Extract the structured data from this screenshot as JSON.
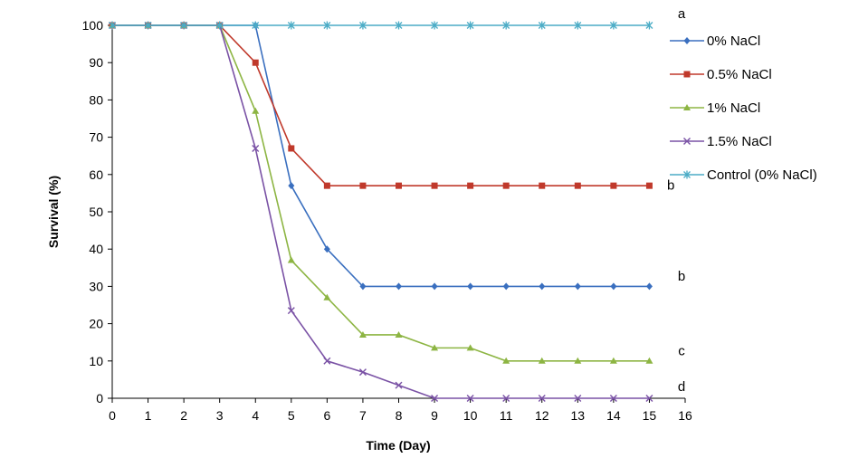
{
  "chart_data": {
    "type": "line",
    "title": "",
    "xlabel": "Time (Day)",
    "ylabel": "Survival (%)",
    "xlim": [
      0,
      16
    ],
    "ylim": [
      0,
      100
    ],
    "x_ticks": [
      0,
      1,
      2,
      3,
      4,
      5,
      6,
      7,
      8,
      9,
      10,
      11,
      12,
      13,
      14,
      15,
      16
    ],
    "y_ticks": [
      0,
      10,
      20,
      30,
      40,
      50,
      60,
      70,
      80,
      90,
      100
    ],
    "grid": false,
    "legend_position": "right",
    "x": [
      0,
      1,
      2,
      3,
      4,
      5,
      6,
      7,
      8,
      9,
      10,
      11,
      12,
      13,
      14,
      15
    ],
    "series": [
      {
        "name": "0% NaCl",
        "color": "#3a6fbf",
        "marker": "diamond",
        "values": [
          100,
          100,
          100,
          100,
          100,
          57,
          40,
          30,
          30,
          30,
          30,
          30,
          30,
          30,
          30,
          30
        ]
      },
      {
        "name": "0.5% NaCl",
        "color": "#c0392b",
        "marker": "square",
        "values": [
          100,
          100,
          100,
          100,
          90,
          67,
          57,
          57,
          57,
          57,
          57,
          57,
          57,
          57,
          57,
          57
        ]
      },
      {
        "name": "1% NaCl",
        "color": "#8db543",
        "marker": "triangle",
        "values": [
          100,
          100,
          100,
          100,
          77,
          37,
          27,
          17,
          17,
          13.5,
          13.5,
          10,
          10,
          10,
          10,
          10
        ]
      },
      {
        "name": "1.5% NaCl",
        "color": "#7a52a5",
        "marker": "x",
        "values": [
          100,
          100,
          100,
          100,
          67,
          23.5,
          10,
          7,
          3.5,
          0,
          0,
          0,
          0,
          0,
          0,
          0
        ]
      },
      {
        "name": "Control (0% NaCl)",
        "color": "#4bacc6",
        "marker": "star",
        "values": [
          100,
          100,
          100,
          100,
          100,
          100,
          100,
          100,
          100,
          100,
          100,
          100,
          100,
          100,
          100,
          100
        ]
      }
    ],
    "annotations": [
      {
        "text": "a",
        "x": 15.9,
        "y": 102
      },
      {
        "text": "b",
        "x": 15.6,
        "y": 56
      },
      {
        "text": "b",
        "x": 15.9,
        "y": 31.5
      },
      {
        "text": "c",
        "x": 15.9,
        "y": 11.5
      },
      {
        "text": "d",
        "x": 15.9,
        "y": 2
      }
    ]
  }
}
